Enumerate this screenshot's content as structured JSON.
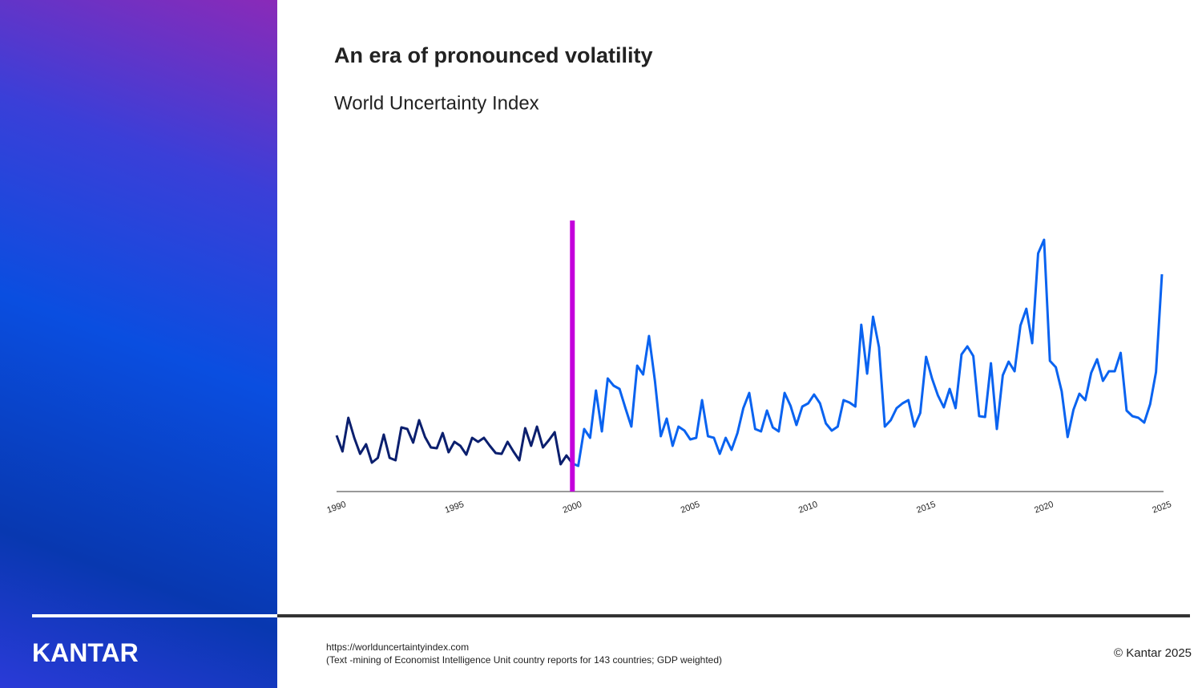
{
  "logo": "KANTAR",
  "chart_data": {
    "type": "line",
    "title": "An era of pronounced volatility",
    "subtitle": "World Uncertainty Index",
    "xlim": [
      1990,
      2025
    ],
    "xticks": [
      1990,
      1995,
      2000,
      2005,
      2010,
      2015,
      2020,
      2025
    ],
    "ylim": [
      0,
      340
    ],
    "vline": {
      "x": 2000,
      "color": "#c400dc"
    },
    "series": [
      {
        "color": "#0b1f6e",
        "x": [
          1990,
          1990.25,
          1990.5,
          1990.75,
          1991,
          1991.25,
          1991.5,
          1991.75,
          1992,
          1992.25,
          1992.5,
          1992.75,
          1993,
          1993.25,
          1993.5,
          1993.75,
          1994,
          1994.25,
          1994.5,
          1994.75,
          1995,
          1995.25,
          1995.5,
          1995.75,
          1996,
          1996.25,
          1996.5,
          1996.75,
          1997,
          1997.25,
          1997.5,
          1997.75,
          1998,
          1998.25,
          1998.5,
          1998.75,
          1999,
          1999.25,
          1999.5,
          1999.75,
          2000
        ],
        "values": [
          70,
          50,
          92,
          67,
          47,
          59,
          36,
          42,
          71,
          42,
          39,
          80,
          78,
          61,
          89,
          68,
          55,
          54,
          73,
          49,
          62,
          57,
          46,
          67,
          62,
          67,
          57,
          48,
          47,
          62,
          50,
          39,
          79,
          57,
          81,
          55,
          64,
          74,
          34,
          45,
          35
        ]
      },
      {
        "color": "#0a63f0",
        "x": [
          2000,
          2000.25,
          2000.5,
          2000.75,
          2001,
          2001.25,
          2001.5,
          2001.75,
          2002,
          2002.25,
          2002.5,
          2002.75,
          2003,
          2003.25,
          2003.5,
          2003.75,
          2004,
          2004.25,
          2004.5,
          2004.75,
          2005,
          2005.25,
          2005.5,
          2005.75,
          2006,
          2006.25,
          2006.5,
          2006.75,
          2007,
          2007.25,
          2007.5,
          2007.75,
          2008,
          2008.25,
          2008.5,
          2008.75,
          2009,
          2009.25,
          2009.5,
          2009.75,
          2010,
          2010.25,
          2010.5,
          2010.75,
          2011,
          2011.25,
          2011.5,
          2011.75,
          2012,
          2012.25,
          2012.5,
          2012.75,
          2013,
          2013.25,
          2013.5,
          2013.75,
          2014,
          2014.25,
          2014.5,
          2014.75,
          2015,
          2015.25,
          2015.5,
          2015.75,
          2016,
          2016.25,
          2016.5,
          2016.75,
          2017,
          2017.25,
          2017.5,
          2017.75,
          2018,
          2018.25,
          2018.5,
          2018.75,
          2019,
          2019.25,
          2019.5,
          2019.75,
          2020,
          2020.25,
          2020.5,
          2020.75,
          2021,
          2021.25,
          2021.5,
          2021.75,
          2022,
          2022.25,
          2022.5,
          2022.75,
          2023,
          2023.25,
          2023.5,
          2023.75,
          2024,
          2024.25,
          2024.5,
          2024.75,
          2025
        ],
        "values": [
          35,
          32,
          78,
          67,
          126,
          75,
          141,
          132,
          128,
          104,
          81,
          157,
          146,
          194,
          138,
          69,
          91,
          57,
          81,
          76,
          65,
          67,
          114,
          69,
          67,
          47,
          67,
          52,
          73,
          104,
          123,
          78,
          75,
          101,
          80,
          75,
          123,
          107,
          83,
          106,
          110,
          121,
          110,
          85,
          76,
          81,
          114,
          111,
          106,
          208,
          147,
          218,
          180,
          81,
          89,
          104,
          110,
          114,
          81,
          98,
          168,
          141,
          120,
          105,
          128,
          104,
          171,
          181,
          169,
          94,
          93,
          160,
          78,
          145,
          162,
          150,
          207,
          228,
          185,
          297,
          314,
          163,
          155,
          125,
          68,
          102,
          122,
          114,
          148,
          165,
          138,
          150,
          150,
          173,
          101,
          94,
          92,
          86,
          109,
          149,
          271
        ]
      }
    ]
  },
  "footer": {
    "source": "https://worlduncertaintyindex.com",
    "note": "(Text -mining of Economist Intelligence Unit country reports for 143 countries; GDP weighted)",
    "copyright": "© Kantar 2025"
  }
}
